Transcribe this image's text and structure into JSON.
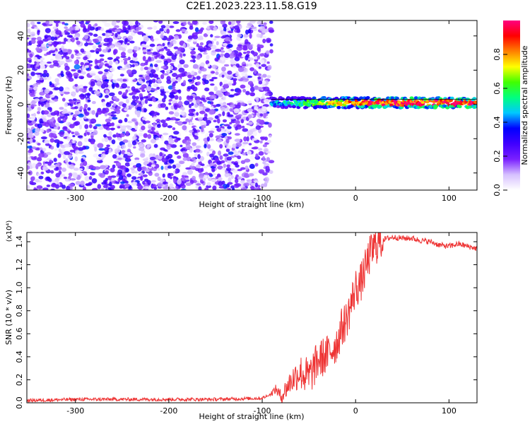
{
  "title": "C2E1.2023.223.11.58.G19",
  "chart_data": [
    {
      "type": "heatmap",
      "xlabel": "Height of straight line (km)",
      "ylabel": "Frequency (Hz)",
      "xlim": [
        -352,
        130
      ],
      "ylim": [
        -50,
        49
      ],
      "xticks": [
        -300,
        -200,
        -100,
        0,
        100
      ],
      "yticks": [
        -40,
        -20,
        0,
        20,
        40
      ],
      "colorbar": {
        "label": "Normalized spectral amplitude",
        "range": [
          0,
          1
        ],
        "ticks": [
          0.0,
          0.2,
          0.4,
          0.6,
          0.8
        ],
        "colors": [
          "#ffffff",
          "#d6c0ff",
          "#7a20ff",
          "#4000ff",
          "#0000ff",
          "#00c8ff",
          "#00ff80",
          "#40ff00",
          "#ffff00",
          "#ff8000",
          "#ff0000",
          "#ff0080"
        ]
      },
      "line_frequency_band": [
        0,
        3
      ],
      "features": [
        {
          "x_range": [
            -352,
            -90
          ],
          "frequency_range": [
            -50,
            49
          ],
          "amplitude": "noise 0.0-0.3"
        },
        {
          "x_range": [
            -90,
            130
          ],
          "frequency_range": [
            -2,
            4
          ],
          "amplitude": "0.4-1.0"
        }
      ]
    },
    {
      "type": "line",
      "xlabel": "Height of straight line (km)",
      "ylabel": "SNR (10 * v/v)",
      "scale_label": "(x10⁴)",
      "xlim": [
        -352,
        130
      ],
      "ylim": [
        0,
        1.48
      ],
      "xticks": [
        -300,
        -200,
        -100,
        0,
        100
      ],
      "yticks": [
        0.0,
        0.2,
        0.4,
        0.6,
        0.8,
        1.0,
        1.2,
        1.4
      ],
      "series": [
        {
          "color": "#ee3333",
          "x": [
            -352,
            -300,
            -250,
            -200,
            -150,
            -100,
            -92,
            -85,
            -80,
            -70,
            -60,
            -50,
            -40,
            -30,
            -20,
            -15,
            -10,
            -5,
            0,
            5,
            10,
            15,
            20,
            25,
            30,
            40,
            50,
            60,
            70,
            80,
            90,
            100,
            110,
            120,
            130
          ],
          "y": [
            0.02,
            0.03,
            0.03,
            0.03,
            0.03,
            0.04,
            0.07,
            0.12,
            0.05,
            0.18,
            0.27,
            0.22,
            0.37,
            0.42,
            0.52,
            0.65,
            0.72,
            0.85,
            1.0,
            1.03,
            1.15,
            1.28,
            1.35,
            1.4,
            1.42,
            1.44,
            1.43,
            1.43,
            1.41,
            1.4,
            1.37,
            1.36,
            1.38,
            1.36,
            1.34
          ]
        }
      ]
    }
  ]
}
